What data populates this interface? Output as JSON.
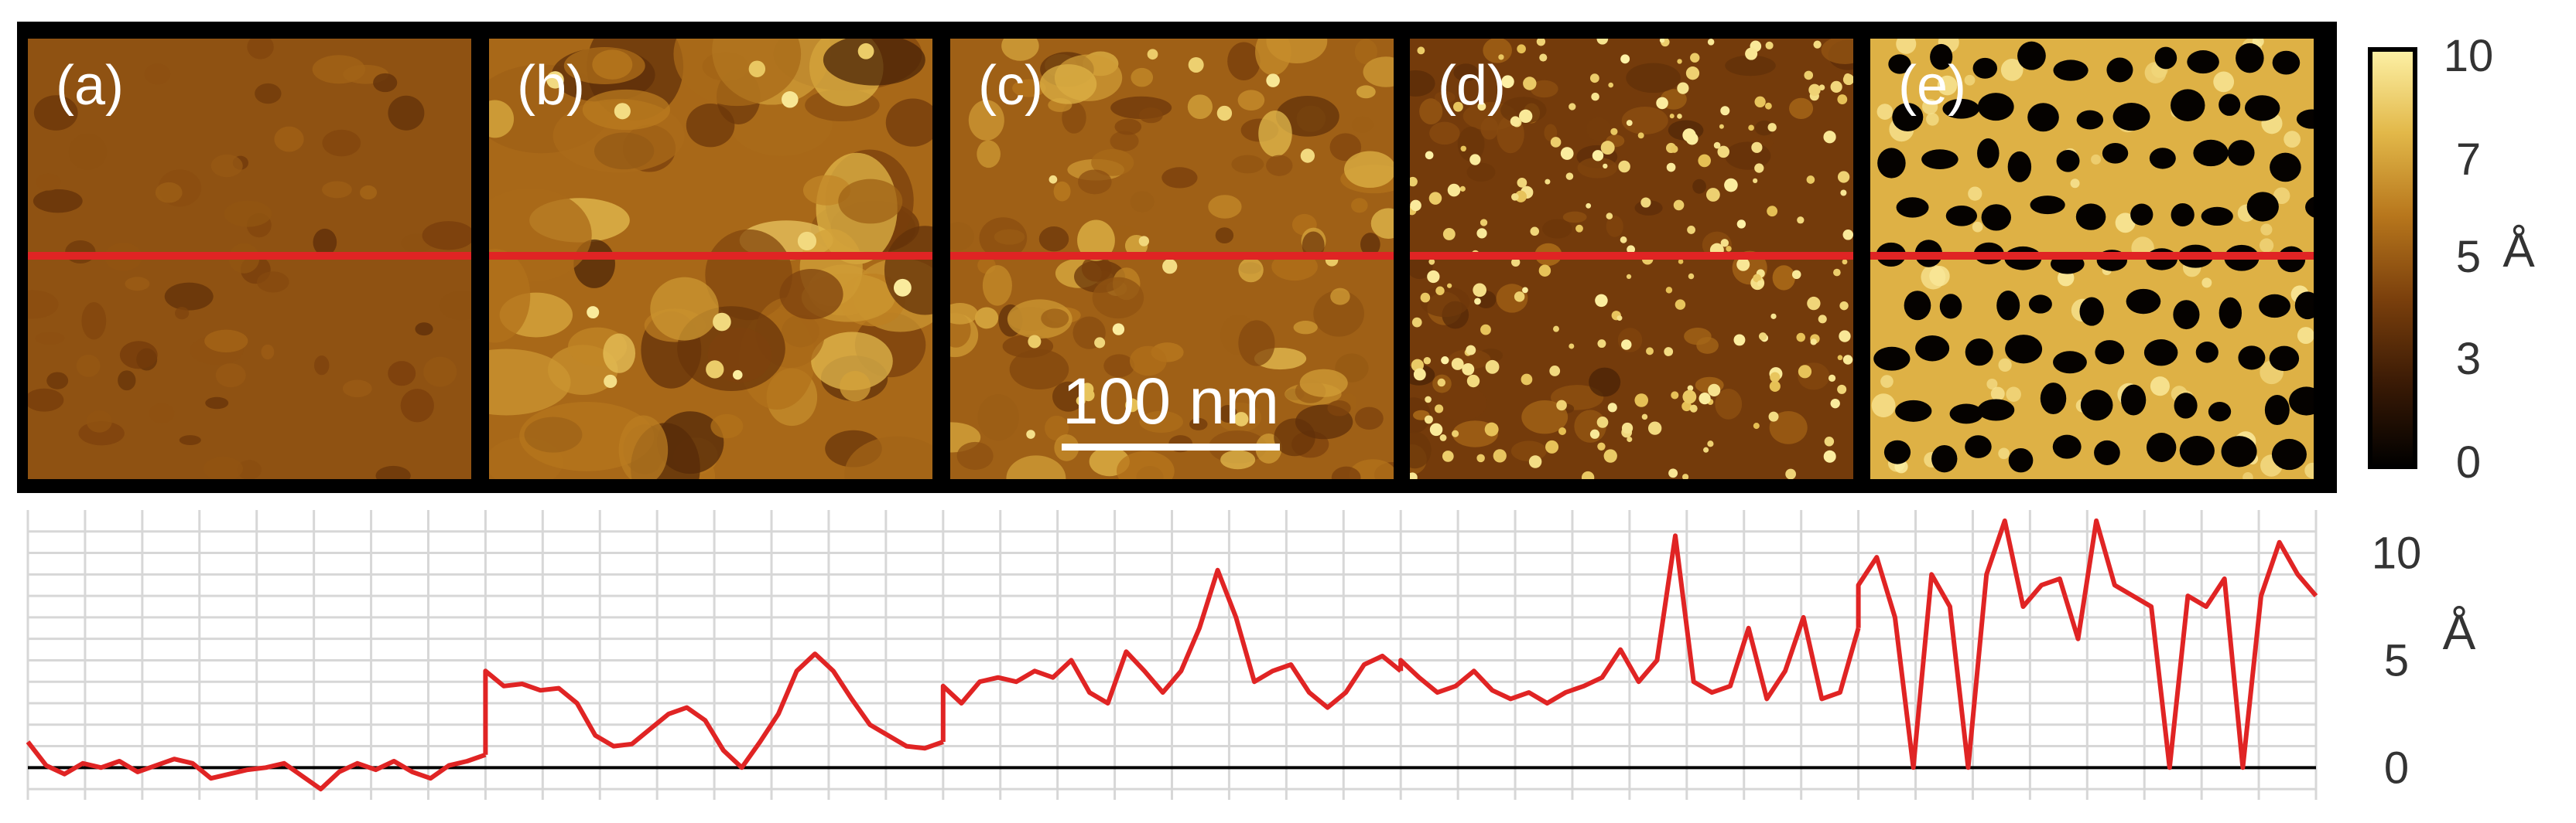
{
  "panels": [
    {
      "label": "(a)",
      "seed": 11,
      "style": "flat"
    },
    {
      "label": "(b)",
      "seed": 23,
      "style": "cloudy"
    },
    {
      "label": "(c)",
      "seed": 37,
      "style": "grainy"
    },
    {
      "label": "(d)",
      "seed": 53,
      "style": "bright-dots"
    },
    {
      "label": "(e)",
      "seed": 71,
      "style": "pores"
    }
  ],
  "scale_bar": {
    "label": "100 nm"
  },
  "colorbar": {
    "ticks": [
      "10",
      "7",
      "5",
      "3",
      "0"
    ],
    "unit": "Å",
    "colors": [
      "#000000",
      "#3a1a05",
      "#7a3f0c",
      "#b7761c",
      "#e2b849",
      "#fdf1a6"
    ]
  },
  "line_color": "#e02424",
  "chart_data": {
    "type": "line",
    "title": "",
    "xlabel": "",
    "ylabel": "Å",
    "ylim": [
      -1.5,
      12
    ],
    "yticks": [
      0,
      5,
      10
    ],
    "grid": true,
    "series": [
      {
        "name": "(a)",
        "x": [
          0,
          4,
          8,
          12,
          16,
          20,
          24,
          28,
          32,
          36,
          40,
          44,
          48,
          52,
          56,
          60,
          64,
          68,
          72,
          76,
          80,
          84,
          88,
          92,
          96,
          100
        ],
        "y": [
          1.2,
          0.1,
          -0.3,
          0.2,
          0.0,
          0.3,
          -0.2,
          0.1,
          0.4,
          0.2,
          -0.5,
          -0.3,
          -0.1,
          0.0,
          0.2,
          -0.4,
          -1.0,
          -0.2,
          0.2,
          -0.1,
          0.3,
          -0.2,
          -0.5,
          0.1,
          0.3,
          0.6
        ]
      },
      {
        "name": "(b)",
        "x": [
          0,
          4,
          8,
          12,
          16,
          20,
          24,
          28,
          32,
          36,
          40,
          44,
          48,
          52,
          56,
          60,
          64,
          68,
          72,
          76,
          80,
          84,
          88,
          92,
          96,
          100
        ],
        "y": [
          4.5,
          3.8,
          3.9,
          3.6,
          3.7,
          3.0,
          1.5,
          1.0,
          1.1,
          1.8,
          2.5,
          2.8,
          2.2,
          0.8,
          0.0,
          1.2,
          2.5,
          4.5,
          5.3,
          4.5,
          3.2,
          2.0,
          1.5,
          1.0,
          0.9,
          1.2
        ]
      },
      {
        "name": "(c)",
        "x": [
          0,
          4,
          8,
          12,
          16,
          20,
          24,
          28,
          32,
          36,
          40,
          44,
          48,
          52,
          56,
          60,
          64,
          68,
          72,
          76,
          80,
          84,
          88,
          92,
          96,
          100
        ],
        "y": [
          3.8,
          3.0,
          4.0,
          4.2,
          4.0,
          4.5,
          4.2,
          5.0,
          3.5,
          3.0,
          5.4,
          4.5,
          3.5,
          4.5,
          6.5,
          9.2,
          7.0,
          4.0,
          4.5,
          4.8,
          3.5,
          2.8,
          3.5,
          4.8,
          5.2,
          4.5
        ]
      },
      {
        "name": "(d)",
        "x": [
          0,
          4,
          8,
          12,
          16,
          20,
          24,
          28,
          32,
          36,
          40,
          44,
          48,
          52,
          56,
          60,
          64,
          68,
          72,
          76,
          80,
          84,
          88,
          92,
          96,
          100
        ],
        "y": [
          5.0,
          4.2,
          3.5,
          3.8,
          4.5,
          3.6,
          3.2,
          3.5,
          3.0,
          3.5,
          3.8,
          4.2,
          5.5,
          4.0,
          5.0,
          10.8,
          4.0,
          3.5,
          3.8,
          6.5,
          3.2,
          4.5,
          7.0,
          3.2,
          3.5,
          6.5
        ]
      },
      {
        "name": "(e)",
        "x": [
          0,
          4,
          8,
          12,
          16,
          20,
          24,
          28,
          32,
          36,
          40,
          44,
          48,
          52,
          56,
          60,
          64,
          68,
          72,
          76,
          80,
          84,
          88,
          92,
          96,
          100
        ],
        "y": [
          8.5,
          9.8,
          7.0,
          0.0,
          9.0,
          7.5,
          0.0,
          9.0,
          11.5,
          7.5,
          8.5,
          8.8,
          6.0,
          11.5,
          8.5,
          8.0,
          7.5,
          0.0,
          8.0,
          7.5,
          8.8,
          0.0,
          8.0,
          10.5,
          9.0,
          8.0
        ]
      }
    ]
  }
}
